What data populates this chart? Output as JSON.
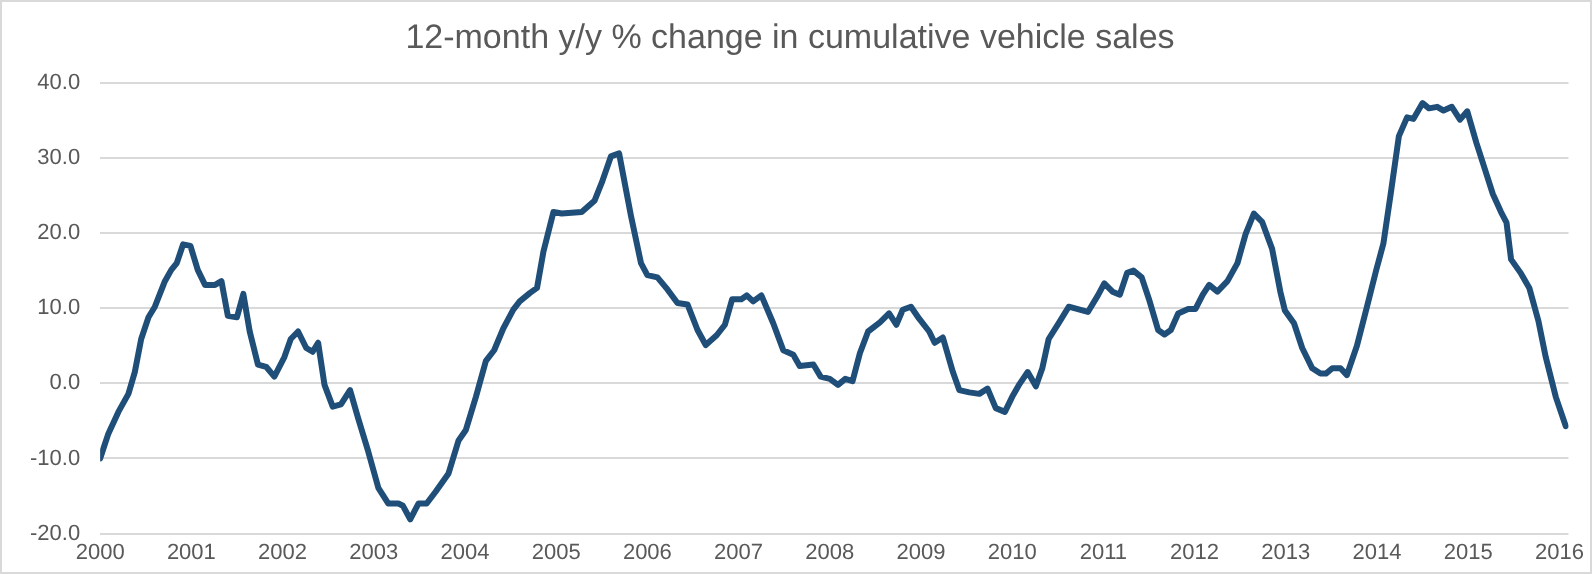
{
  "chart_data": {
    "type": "line",
    "title": "12-month y/y % change in cumulative vehicle sales",
    "xlim": [
      2000,
      2016.1
    ],
    "xticks": [
      2000,
      2001,
      2002,
      2003,
      2004,
      2005,
      2006,
      2007,
      2008,
      2009,
      2010,
      2011,
      2012,
      2013,
      2014,
      2015,
      2016
    ],
    "ylim": [
      -20,
      40
    ],
    "yticks": [
      {
        "value": -20,
        "label": "-20.0"
      },
      {
        "value": -10,
        "label": "-10.0"
      },
      {
        "value": 0,
        "label": "0.0"
      },
      {
        "value": 10,
        "label": "10.0"
      },
      {
        "value": 20,
        "label": "20.0"
      },
      {
        "value": 30,
        "label": "30.0"
      },
      {
        "value": 40,
        "label": "40.0"
      }
    ],
    "grid": "y",
    "legend": false,
    "marker": "none",
    "line_style": "solid",
    "series": [
      {
        "color": "#1f4e79",
        "x": [
          2000.0,
          2000.09,
          2000.2,
          2000.31,
          2000.38,
          2000.45,
          2000.53,
          2000.6,
          2000.71,
          2000.78,
          2000.84,
          2000.91,
          2000.99,
          2001.07,
          2001.15,
          2001.26,
          2001.33,
          2001.4,
          2001.5,
          2001.57,
          2001.64,
          2001.73,
          2001.82,
          2001.91,
          2002.02,
          2002.09,
          2002.17,
          2002.26,
          2002.33,
          2002.39,
          2002.46,
          2002.55,
          2002.64,
          2002.74,
          2002.83,
          2002.94,
          2003.05,
          2003.16,
          2003.27,
          2003.32,
          2003.4,
          2003.49,
          2003.58,
          2003.68,
          2003.82,
          2003.93,
          2004.01,
          2004.12,
          2004.23,
          2004.32,
          2004.42,
          2004.53,
          2004.6,
          2004.71,
          2004.79,
          2004.86,
          2004.97,
          2005.06,
          2005.28,
          2005.42,
          2005.5,
          2005.6,
          2005.69,
          2005.82,
          2005.93,
          2006.0,
          2006.11,
          2006.22,
          2006.33,
          2006.44,
          2006.55,
          2006.64,
          2006.76,
          2006.85,
          2006.93,
          2007.03,
          2007.09,
          2007.16,
          2007.25,
          2007.38,
          2007.49,
          2007.6,
          2007.67,
          2007.82,
          2007.9,
          2008.0,
          2008.09,
          2008.17,
          2008.25,
          2008.33,
          2008.42,
          2008.55,
          2008.65,
          2008.73,
          2008.8,
          2008.89,
          2008.98,
          2009.09,
          2009.15,
          2009.24,
          2009.35,
          2009.42,
          2009.53,
          2009.64,
          2009.73,
          2009.82,
          2009.92,
          2010.0,
          2010.08,
          2010.17,
          2010.26,
          2010.33,
          2010.4,
          2010.51,
          2010.62,
          2010.83,
          2010.94,
          2011.01,
          2011.1,
          2011.18,
          2011.26,
          2011.33,
          2011.42,
          2011.5,
          2011.6,
          2011.67,
          2011.74,
          2011.82,
          2011.93,
          2012.01,
          2012.09,
          2012.16,
          2012.25,
          2012.36,
          2012.47,
          2012.56,
          2012.65,
          2012.74,
          2012.85,
          2012.94,
          2012.99,
          2013.09,
          2013.18,
          2013.29,
          2013.38,
          2013.44,
          2013.51,
          2013.6,
          2013.67,
          2013.78,
          2013.89,
          2013.99,
          2014.07,
          2014.15,
          2014.24,
          2014.33,
          2014.4,
          2014.5,
          2014.57,
          2014.66,
          2014.73,
          2014.82,
          2014.91,
          2014.99,
          2015.09,
          2015.18,
          2015.27,
          2015.36,
          2015.42,
          2015.47,
          2015.58,
          2015.67,
          2015.77,
          2015.85,
          2015.96,
          2016.07
        ],
        "values": [
          -10.0,
          -6.7,
          -3.8,
          -1.4,
          1.5,
          5.9,
          8.8,
          10.2,
          13.6,
          15.1,
          16.0,
          18.5,
          18.3,
          15.1,
          13.1,
          13.1,
          13.6,
          9.0,
          8.8,
          11.9,
          6.9,
          2.5,
          2.2,
          0.9,
          3.5,
          5.9,
          6.9,
          4.7,
          4.2,
          5.4,
          -0.2,
          -3.1,
          -2.8,
          -0.9,
          -4.7,
          -9.1,
          -13.9,
          -16.0,
          -16.0,
          -16.3,
          -18.1,
          -16.0,
          -16.0,
          -14.4,
          -12.0,
          -7.6,
          -6.2,
          -1.8,
          3.0,
          4.4,
          7.3,
          9.8,
          10.9,
          12.0,
          12.7,
          17.5,
          22.8,
          22.6,
          22.8,
          24.3,
          26.7,
          30.2,
          30.6,
          22.3,
          16.0,
          14.4,
          14.1,
          12.5,
          10.7,
          10.5,
          7.1,
          5.1,
          6.4,
          7.8,
          11.2,
          11.2,
          11.7,
          10.9,
          11.7,
          8.0,
          4.4,
          3.8,
          2.3,
          2.5,
          0.9,
          0.6,
          -0.2,
          0.6,
          0.3,
          4.0,
          6.9,
          8.1,
          9.3,
          7.8,
          9.8,
          10.2,
          8.6,
          6.9,
          5.4,
          6.1,
          1.5,
          -0.9,
          -1.2,
          -1.4,
          -0.7,
          -3.3,
          -3.8,
          -1.8,
          -0.1,
          1.5,
          -0.4,
          2.0,
          5.9,
          8.0,
          10.2,
          9.5,
          11.7,
          13.3,
          12.2,
          11.8,
          14.7,
          15.0,
          14.1,
          11.2,
          7.1,
          6.5,
          7.1,
          9.3,
          9.9,
          9.9,
          11.8,
          13.1,
          12.2,
          13.6,
          16.0,
          19.9,
          22.6,
          21.5,
          17.9,
          12.2,
          9.7,
          8.0,
          4.7,
          2.0,
          1.3,
          1.3,
          2.0,
          2.0,
          1.1,
          5.0,
          10.2,
          15.0,
          18.6,
          25.2,
          32.9,
          35.4,
          35.2,
          37.3,
          36.6,
          36.8,
          36.3,
          36.8,
          35.1,
          36.2,
          32.0,
          28.6,
          25.2,
          22.8,
          21.4,
          16.5,
          14.6,
          12.7,
          8.3,
          3.5,
          -1.8,
          -5.7
        ]
      }
    ]
  }
}
